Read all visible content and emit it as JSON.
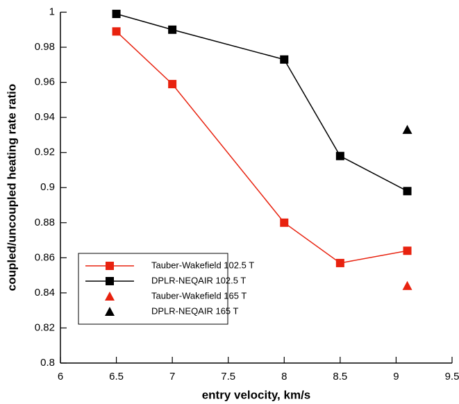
{
  "chart_data": {
    "type": "line",
    "xlabel": "entry velocity, km/s",
    "ylabel": "coupled/uncoupled heating rate ratio",
    "xlim": [
      6,
      9.5
    ],
    "xticks": [
      6,
      6.5,
      7,
      7.5,
      8,
      8.5,
      9,
      9.5
    ],
    "ylim": [
      0.8,
      1
    ],
    "yticks": [
      0.8,
      0.82,
      0.84,
      0.86,
      0.88,
      0.9,
      0.92,
      0.94,
      0.96,
      0.98,
      1
    ],
    "legend": "lower-left",
    "series": [
      {
        "name": "Tauber-Wakefield 102.5 T",
        "color": "#e8220f",
        "marker": "square",
        "line": true,
        "x": [
          6.5,
          7,
          8,
          8.5,
          9.1
        ],
        "values": [
          0.989,
          0.959,
          0.88,
          0.857,
          0.864
        ]
      },
      {
        "name": "DPLR-NEQAIR 102.5 T",
        "color": "#000000",
        "marker": "square",
        "line": true,
        "x": [
          6.5,
          7,
          8,
          8.5,
          9.1
        ],
        "values": [
          0.999,
          0.99,
          0.973,
          0.918,
          0.898
        ]
      },
      {
        "name": "Tauber-Wakefield 165 T",
        "color": "#e8220f",
        "marker": "triangle",
        "line": false,
        "x": [
          9.1
        ],
        "values": [
          0.844
        ]
      },
      {
        "name": "DPLR-NEQAIR 165 T",
        "color": "#000000",
        "marker": "triangle",
        "line": false,
        "x": [
          9.1
        ],
        "values": [
          0.933
        ]
      }
    ]
  }
}
